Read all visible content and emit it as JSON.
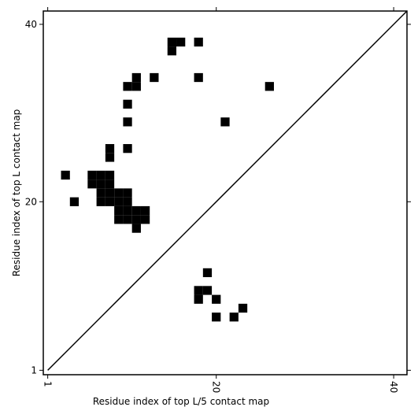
{
  "chart_data": {
    "type": "scatter",
    "marker": "square",
    "color": "#000000",
    "diagonal": true,
    "x_label": "Residue index of top L/5 contact map",
    "y_label": "Residue index of top L contact map",
    "x": [
      3,
      4,
      6,
      7,
      8,
      6,
      7,
      8,
      7,
      8,
      9,
      10,
      7,
      8,
      9,
      10,
      9,
      10,
      11,
      12,
      9,
      10,
      11,
      12,
      11,
      8,
      8,
      10,
      10,
      10,
      10,
      11,
      11,
      13,
      15,
      15,
      16,
      18,
      18,
      21,
      26,
      19,
      18,
      19,
      18,
      20,
      23,
      20,
      22
    ],
    "y": [
      23,
      20,
      23,
      23,
      23,
      22,
      22,
      22,
      21,
      21,
      21,
      21,
      20,
      20,
      20,
      20,
      19,
      19,
      19,
      19,
      18,
      18,
      18,
      18,
      17,
      26,
      25,
      26,
      29,
      31,
      33,
      33,
      34,
      34,
      38,
      37,
      38,
      38,
      34,
      29,
      33,
      12,
      10,
      10,
      9,
      9,
      8,
      7,
      7
    ],
    "xlim": [
      0.5,
      41.5
    ],
    "ylim": [
      0.5,
      41.5
    ],
    "xticks": [
      1,
      20,
      40
    ],
    "yticks": [
      1,
      20,
      40
    ]
  }
}
